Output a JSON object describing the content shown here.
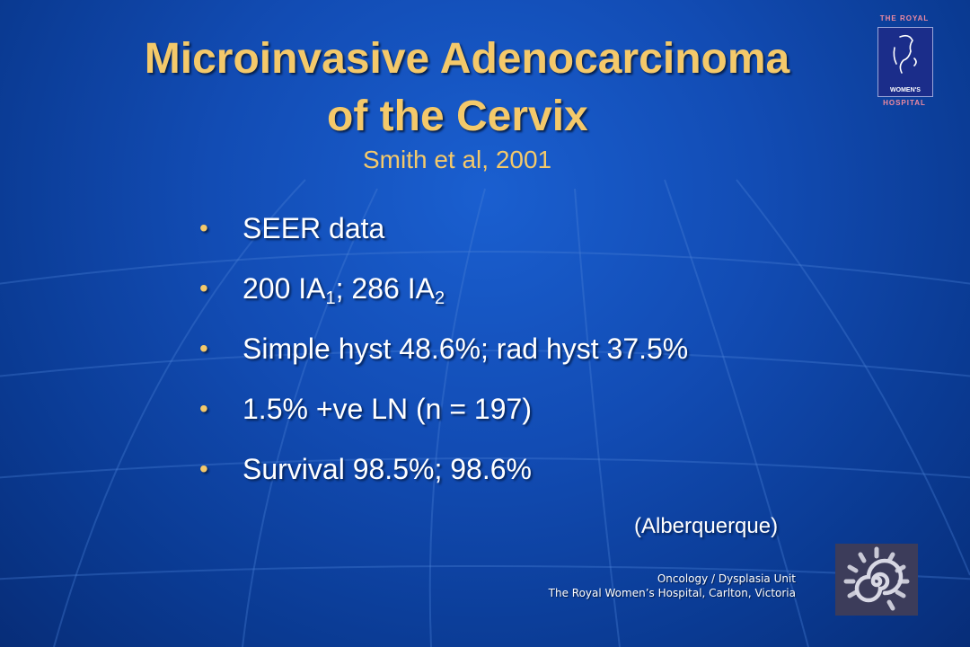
{
  "slide": {
    "title_line1": "Microinvasive Adenocarcinoma",
    "title_line2": "of the Cervix",
    "subtitle": "Smith et al, 2001"
  },
  "bullet_marker": "•",
  "bullets": {
    "b1": "SEER data",
    "b2": {
      "part1": "200 IA",
      "sub1": "1",
      "part2": ";  286 IA",
      "sub2": "2"
    },
    "b3": "Simple hyst 48.6%;  rad hyst 37.5%",
    "b4": "1.5% +ve LN (n = 197)",
    "b5": "Survival 98.5%;  98.6%"
  },
  "reference": "(Alberquerque)",
  "footer": {
    "line1": "Oncology / Dysplasia Unit",
    "line2": "The Royal Women’s Hospital, Carlton, Victoria"
  },
  "logo": {
    "top_caption": "THE ROYAL",
    "box_caption": "WOMEN'S",
    "bottom_caption": "HOSPITAL"
  },
  "colors": {
    "background": "#124cb4",
    "title": "#f4c96a",
    "text": "#ffffff"
  }
}
